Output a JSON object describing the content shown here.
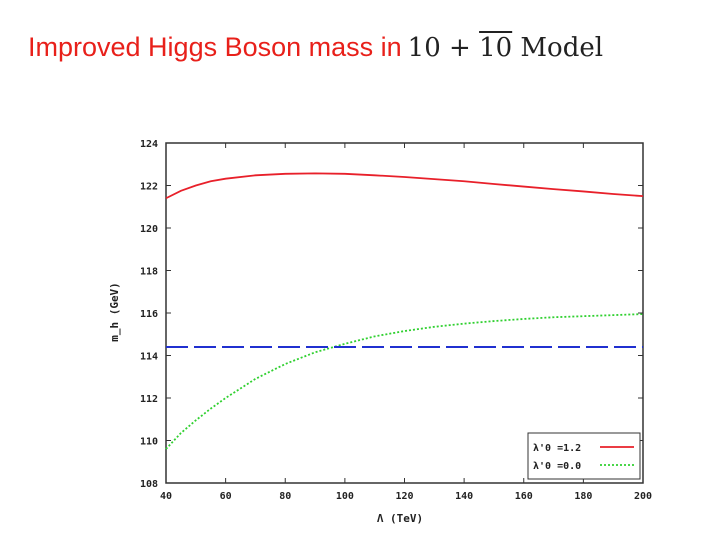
{
  "page": {
    "title_text": "Improved Higgs Boson mass in",
    "title_math_a": "10 + ",
    "title_math_b": "10",
    "title_math_c": " Model"
  },
  "chart_data": {
    "type": "line",
    "xlabel": "Λ (TeV)",
    "ylabel": "m_h (GeV)",
    "xlim": [
      40,
      200
    ],
    "ylim": [
      108,
      124
    ],
    "xticks": [
      40,
      60,
      80,
      100,
      120,
      140,
      160,
      180,
      200
    ],
    "yticks": [
      108,
      110,
      112,
      114,
      116,
      118,
      120,
      122,
      124
    ],
    "legend_position": "bottom-right",
    "series": [
      {
        "name": "λ'0 =1.2",
        "color": "#e8202a",
        "style": "solid",
        "in_legend": true,
        "x": [
          40,
          45,
          50,
          55,
          60,
          70,
          80,
          90,
          100,
          110,
          120,
          130,
          140,
          150,
          160,
          170,
          180,
          190,
          200
        ],
        "y": [
          121.4,
          121.75,
          122.0,
          122.2,
          122.32,
          122.48,
          122.55,
          122.57,
          122.55,
          122.48,
          122.4,
          122.3,
          122.2,
          122.07,
          121.95,
          121.83,
          121.72,
          121.6,
          121.5
        ]
      },
      {
        "name": "λ'0 =0.0",
        "color": "#30d030",
        "style": "dotted",
        "in_legend": true,
        "x": [
          40,
          45,
          50,
          55,
          60,
          70,
          80,
          90,
          100,
          110,
          120,
          130,
          140,
          150,
          160,
          170,
          180,
          190,
          200
        ],
        "y": [
          109.6,
          110.35,
          110.95,
          111.5,
          112.0,
          112.9,
          113.6,
          114.15,
          114.55,
          114.9,
          115.15,
          115.35,
          115.5,
          115.62,
          115.72,
          115.8,
          115.85,
          115.9,
          115.95
        ]
      },
      {
        "name": "reference",
        "color": "#2030d0",
        "style": "dashed",
        "in_legend": false,
        "x": [
          40,
          200
        ],
        "y": [
          114.4,
          114.4
        ]
      }
    ]
  }
}
